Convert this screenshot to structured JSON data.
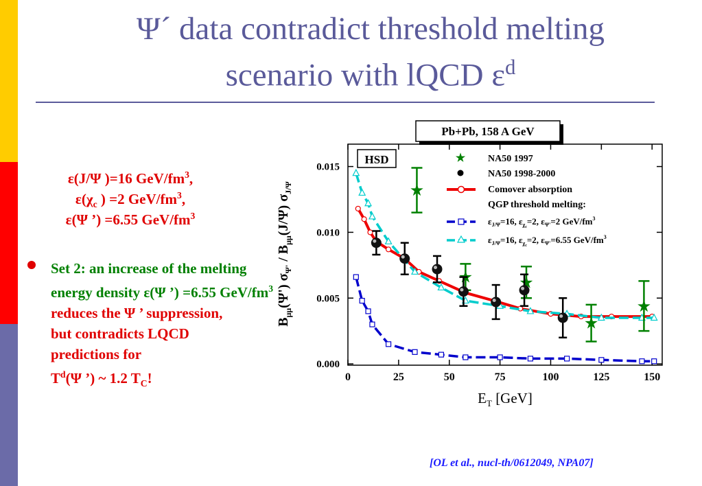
{
  "title": {
    "line1": "Ψ´ data contradict threshold melting",
    "line2": "scenario with lQCD ε",
    "line2_sup": "d"
  },
  "epsilon_values": {
    "line1": "ε(J/Ψ )=16  GeV/fm",
    "line1_tail": ",",
    "line2": "ε(χ",
    "line2_sub": "c",
    "line2_mid": " ) =2 GeV/fm",
    "line2_tail": ",",
    "line3": "ε(Ψ ’) =6.55 GeV/fm",
    "unit_exp": "3"
  },
  "bullet": {
    "set_label": "Set 2:",
    "green_text": " an increase of the melting energy density ε(Ψ ’) =6.55 GeV/fm",
    "green_sup": "3",
    "red_line1": " reduces the Ψ ’ suppression,",
    "red_line2": "but contradicts LQCD",
    "red_line3": "predictions for",
    "red_line4_a": "T",
    "red_line4_sup": "d",
    "red_line4_b": "(Ψ ’) ~ 1.2 T",
    "red_line4_sub": "C",
    "red_line4_c": "!"
  },
  "citation": "[OL et al., nucl-th/0612049, NPA07]",
  "colors": {
    "title": "#5a5a9a",
    "red": "#e00000",
    "green": "#008000",
    "blue": "#0000cc",
    "cyan": "#00cccc",
    "comover": "#ee0000",
    "citation": "#1a1aff",
    "sidebar": [
      "#ffcc00",
      "#ff0000",
      "#6b6ba8"
    ]
  },
  "chart_data": {
    "type": "scatter",
    "collision_label": "Pb+Pb, 158 A GeV",
    "model_label": "HSD",
    "xlabel": "E",
    "xlabel_sub": "T",
    "xlabel_unit": " [GeV]",
    "ylabel": "B",
    "ylabel_sub1": "μμ",
    "ylabel_mid": "(Ψ') σ",
    "ylabel_sub2": "Ψ'",
    "ylabel_mid2": " / B",
    "ylabel_sub3": "μμ",
    "ylabel_mid3": "(J/Ψ) σ",
    "ylabel_sub4": "J/Ψ",
    "xlim": [
      0,
      155
    ],
    "ylim": [
      -0.0001,
      0.0167
    ],
    "x_ticks": [
      0,
      25,
      50,
      75,
      100,
      125,
      150
    ],
    "x_tick_labels": [
      "0",
      "25",
      "50",
      "75",
      "100",
      "125",
      "150"
    ],
    "y_ticks": [
      0.0,
      0.005,
      0.01,
      0.015
    ],
    "y_tick_labels": [
      "0.000",
      "0.005",
      "0.010",
      "0.015"
    ],
    "legend": {
      "na50_1997": "NA50 1997",
      "na50_9800": "NA50 1998-2000",
      "comover": "Comover absorption",
      "qgp_title": "QGP threshold melting:",
      "set1_a": "ε",
      "set1_s1": "J/Ψ",
      "set1_b": "=16, ε",
      "set1_s2": "χ",
      "set1_s2b": "c",
      "set1_c": "=2, ε",
      "set1_s3": "Ψ'",
      "set1_d": "=2 GeV/fm",
      "set1_sup": "3",
      "set2_a": "ε",
      "set2_s1": "J/Ψ",
      "set2_b": "=16, ε",
      "set2_s2": "χ",
      "set2_s2b": "c",
      "set2_c": "=2, ε",
      "set2_s3": "Ψ'",
      "set2_d": "=6.55 GeV/fm",
      "set2_sup": "3"
    },
    "series": [
      {
        "name": "NA50 1997",
        "kind": "star",
        "color": "#008000",
        "points": [
          {
            "x": 34,
            "y": 0.0132,
            "err": 0.0017
          },
          {
            "x": 58,
            "y": 0.0066,
            "err": 0.001
          },
          {
            "x": 88,
            "y": 0.0062,
            "err": 0.0012
          },
          {
            "x": 120,
            "y": 0.0031,
            "err": 0.0014
          },
          {
            "x": 146,
            "y": 0.0044,
            "err": 0.0019
          }
        ]
      },
      {
        "name": "NA50 1998-2000",
        "kind": "ball",
        "color": "#000000",
        "points": [
          {
            "x": 14,
            "y": 0.0092,
            "err": 0.0009
          },
          {
            "x": 28,
            "y": 0.008,
            "err": 0.0012
          },
          {
            "x": 44,
            "y": 0.0072,
            "err": 0.001
          },
          {
            "x": 57,
            "y": 0.0055,
            "err": 0.0011
          },
          {
            "x": 73,
            "y": 0.0047,
            "err": 0.0013
          },
          {
            "x": 87,
            "y": 0.0056,
            "err": 0.0012
          },
          {
            "x": 106,
            "y": 0.0035,
            "err": 0.0015
          }
        ]
      },
      {
        "name": "Comover absorption",
        "kind": "line",
        "color": "#ee0000",
        "points": [
          {
            "x": 5,
            "y": 0.0118
          },
          {
            "x": 8,
            "y": 0.011
          },
          {
            "x": 11,
            "y": 0.01
          },
          {
            "x": 14,
            "y": 0.0093
          },
          {
            "x": 20,
            "y": 0.0087
          },
          {
            "x": 28,
            "y": 0.008
          },
          {
            "x": 35,
            "y": 0.007
          },
          {
            "x": 45,
            "y": 0.0063
          },
          {
            "x": 58,
            "y": 0.0054
          },
          {
            "x": 72,
            "y": 0.0048
          },
          {
            "x": 85,
            "y": 0.0042
          },
          {
            "x": 100,
            "y": 0.0038
          },
          {
            "x": 115,
            "y": 0.0036
          },
          {
            "x": 130,
            "y": 0.0036
          },
          {
            "x": 150,
            "y": 0.0036
          }
        ]
      },
      {
        "name": "set1",
        "kind": "dashed-box",
        "color": "#0000cc",
        "points": [
          {
            "x": 4,
            "y": 0.0066
          },
          {
            "x": 7,
            "y": 0.0048
          },
          {
            "x": 10,
            "y": 0.004
          },
          {
            "x": 12,
            "y": 0.003
          },
          {
            "x": 20,
            "y": 0.0015
          },
          {
            "x": 33,
            "y": 0.0009
          },
          {
            "x": 46,
            "y": 0.0007
          },
          {
            "x": 58,
            "y": 0.0005
          },
          {
            "x": 75,
            "y": 0.0005
          },
          {
            "x": 90,
            "y": 0.0004
          },
          {
            "x": 108,
            "y": 0.0004
          },
          {
            "x": 125,
            "y": 0.0003
          },
          {
            "x": 145,
            "y": 0.0002
          },
          {
            "x": 151,
            "y": 0.0002
          }
        ]
      },
      {
        "name": "set2",
        "kind": "dashed-triangle",
        "color": "#00cccc",
        "points": [
          {
            "x": 4,
            "y": 0.0145
          },
          {
            "x": 7,
            "y": 0.013
          },
          {
            "x": 10,
            "y": 0.0122
          },
          {
            "x": 12,
            "y": 0.0112
          },
          {
            "x": 20,
            "y": 0.0093
          },
          {
            "x": 33,
            "y": 0.007
          },
          {
            "x": 46,
            "y": 0.0058
          },
          {
            "x": 58,
            "y": 0.0048
          },
          {
            "x": 75,
            "y": 0.0044
          },
          {
            "x": 90,
            "y": 0.004
          },
          {
            "x": 108,
            "y": 0.0038
          },
          {
            "x": 125,
            "y": 0.0035
          },
          {
            "x": 145,
            "y": 0.0035
          },
          {
            "x": 151,
            "y": 0.0035
          }
        ]
      }
    ],
    "legend_placement": "top-right",
    "grid": false
  }
}
